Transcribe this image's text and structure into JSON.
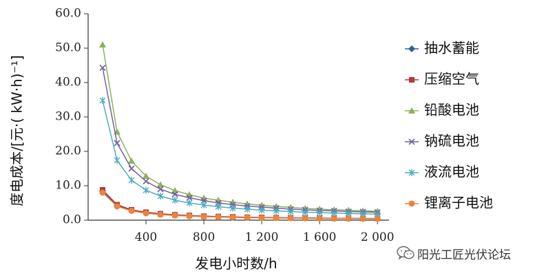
{
  "chart_data": {
    "type": "line",
    "ylabel": "度电成本/[元·( kW·h)⁻¹]",
    "xlabel": "发电小时数/h",
    "x": [
      100,
      200,
      300,
      400,
      500,
      600,
      700,
      800,
      900,
      1000,
      1100,
      1200,
      1300,
      1400,
      1500,
      1600,
      1700,
      1800,
      1900,
      2000
    ],
    "xticks": [
      400,
      800,
      1200,
      1600,
      2000
    ],
    "xtick_labels": [
      "400",
      "800",
      "1 200",
      "1 600",
      "2 000"
    ],
    "xlim": [
      0,
      2080
    ],
    "ylim": [
      0,
      60
    ],
    "yticks": [
      0,
      10,
      20,
      30,
      40,
      50,
      60
    ],
    "ytick_labels": [
      "0.0",
      "10.0",
      "20.0",
      "30.0",
      "40.0",
      "50.0",
      "60.0"
    ],
    "grid": false,
    "legend_position": "right",
    "series": [
      {
        "name": "抽水蓄能",
        "marker": "diamond",
        "color": "#2E5F9E",
        "values": [
          8.5,
          4.3,
          2.9,
          2.2,
          1.8,
          1.5,
          1.3,
          1.1,
          1.0,
          0.9,
          0.8,
          0.75,
          0.7,
          0.65,
          0.6,
          0.55,
          0.5,
          0.48,
          0.46,
          0.44
        ]
      },
      {
        "name": "压缩空气",
        "marker": "square",
        "color": "#B33A35",
        "values": [
          8.8,
          4.5,
          3.0,
          2.3,
          1.85,
          1.55,
          1.35,
          1.15,
          1.05,
          0.95,
          0.85,
          0.8,
          0.74,
          0.68,
          0.64,
          0.6,
          0.56,
          0.53,
          0.5,
          0.48
        ]
      },
      {
        "name": "铅酸电池",
        "marker": "triangle",
        "color": "#8DB05A",
        "values": [
          51.0,
          25.7,
          17.2,
          12.8,
          10.3,
          8.6,
          7.4,
          6.4,
          5.8,
          5.2,
          4.7,
          4.3,
          4.0,
          3.7,
          3.4,
          3.2,
          3.0,
          2.9,
          2.7,
          2.6
        ]
      },
      {
        "name": "钠硫电池",
        "marker": "x",
        "color": "#7560A0",
        "values": [
          44.3,
          22.4,
          15.0,
          11.3,
          9.0,
          7.5,
          6.5,
          5.7,
          5.0,
          4.5,
          4.1,
          3.8,
          3.5,
          3.2,
          3.0,
          2.8,
          2.7,
          2.5,
          2.4,
          2.3
        ]
      },
      {
        "name": "液流电池",
        "marker": "star",
        "color": "#4AACC6",
        "values": [
          34.8,
          17.4,
          11.6,
          8.7,
          7.0,
          5.8,
          5.0,
          4.4,
          3.9,
          3.5,
          3.2,
          2.9,
          2.7,
          2.5,
          2.3,
          2.2,
          2.05,
          1.95,
          1.85,
          1.75
        ]
      },
      {
        "name": "锂离子电池",
        "marker": "circle",
        "color": "#E8853E",
        "values": [
          8.0,
          4.0,
          2.7,
          2.0,
          1.6,
          1.35,
          1.15,
          1.0,
          0.9,
          0.8,
          0.73,
          0.67,
          0.62,
          0.58,
          0.54,
          0.5,
          0.47,
          0.45,
          0.42,
          0.4
        ]
      }
    ]
  },
  "watermark": {
    "text": "阳光工匠光伏论坛",
    "icon": "wechat-icon"
  }
}
